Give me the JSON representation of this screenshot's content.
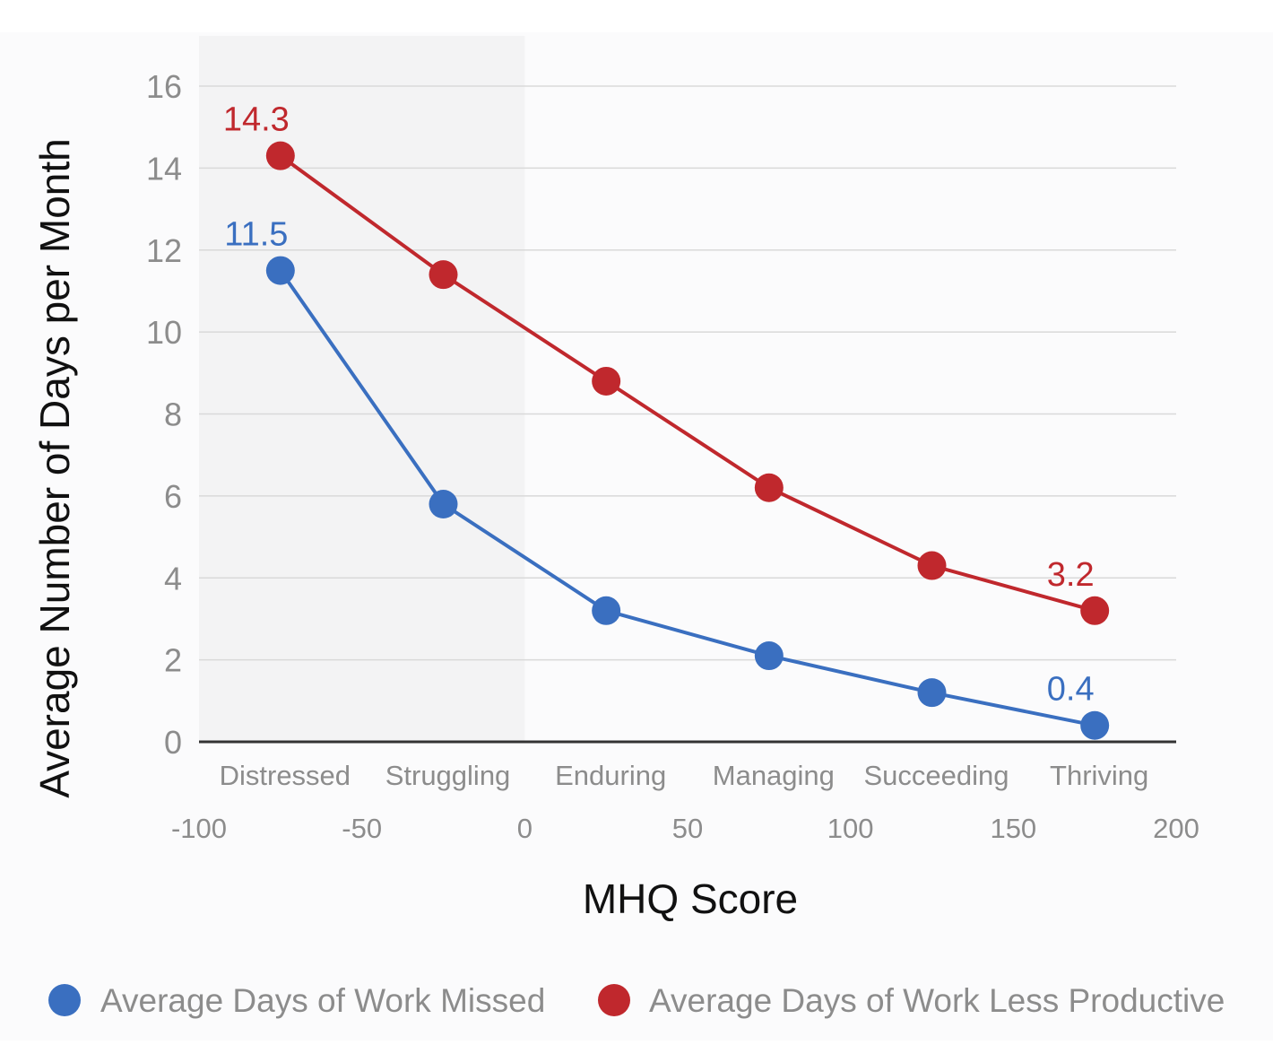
{
  "chart_data": {
    "type": "line",
    "title": "",
    "xlabel": "MHQ Score",
    "ylabel": "Average Number of Days per Month",
    "xlim": [
      -100,
      200
    ],
    "ylim": [
      0,
      16
    ],
    "x_ticks": [
      -100,
      -50,
      0,
      50,
      100,
      150,
      200
    ],
    "y_ticks": [
      0,
      2,
      4,
      6,
      8,
      10,
      12,
      14,
      16
    ],
    "categories": [
      "Distressed",
      "Struggling",
      "Enduring",
      "Managing",
      "Succeeding",
      "Thriving"
    ],
    "x": [
      -75,
      -25,
      25,
      75,
      125,
      175
    ],
    "grid": true,
    "legend_position": "bottom",
    "series": [
      {
        "name": "Average Days of Work Missed",
        "color": "#3a6fc0",
        "values": [
          11.5,
          5.8,
          3.2,
          2.1,
          1.2,
          0.4
        ],
        "labels": [
          "11.5",
          "",
          "",
          "",
          "",
          "0.4"
        ]
      },
      {
        "name": "Average Days of Work Less Productive",
        "color": "#c0282d",
        "values": [
          14.3,
          11.4,
          8.8,
          6.2,
          4.3,
          3.2
        ],
        "labels": [
          "14.3",
          "",
          "",
          "",
          "",
          "3.2"
        ]
      }
    ],
    "colors": {
      "grid": "#d9d9d9",
      "axis": "#333333",
      "tick_text": "#8c8c8c",
      "shaded_region": "#f3f3f4",
      "background": "#fbfbfc"
    }
  }
}
